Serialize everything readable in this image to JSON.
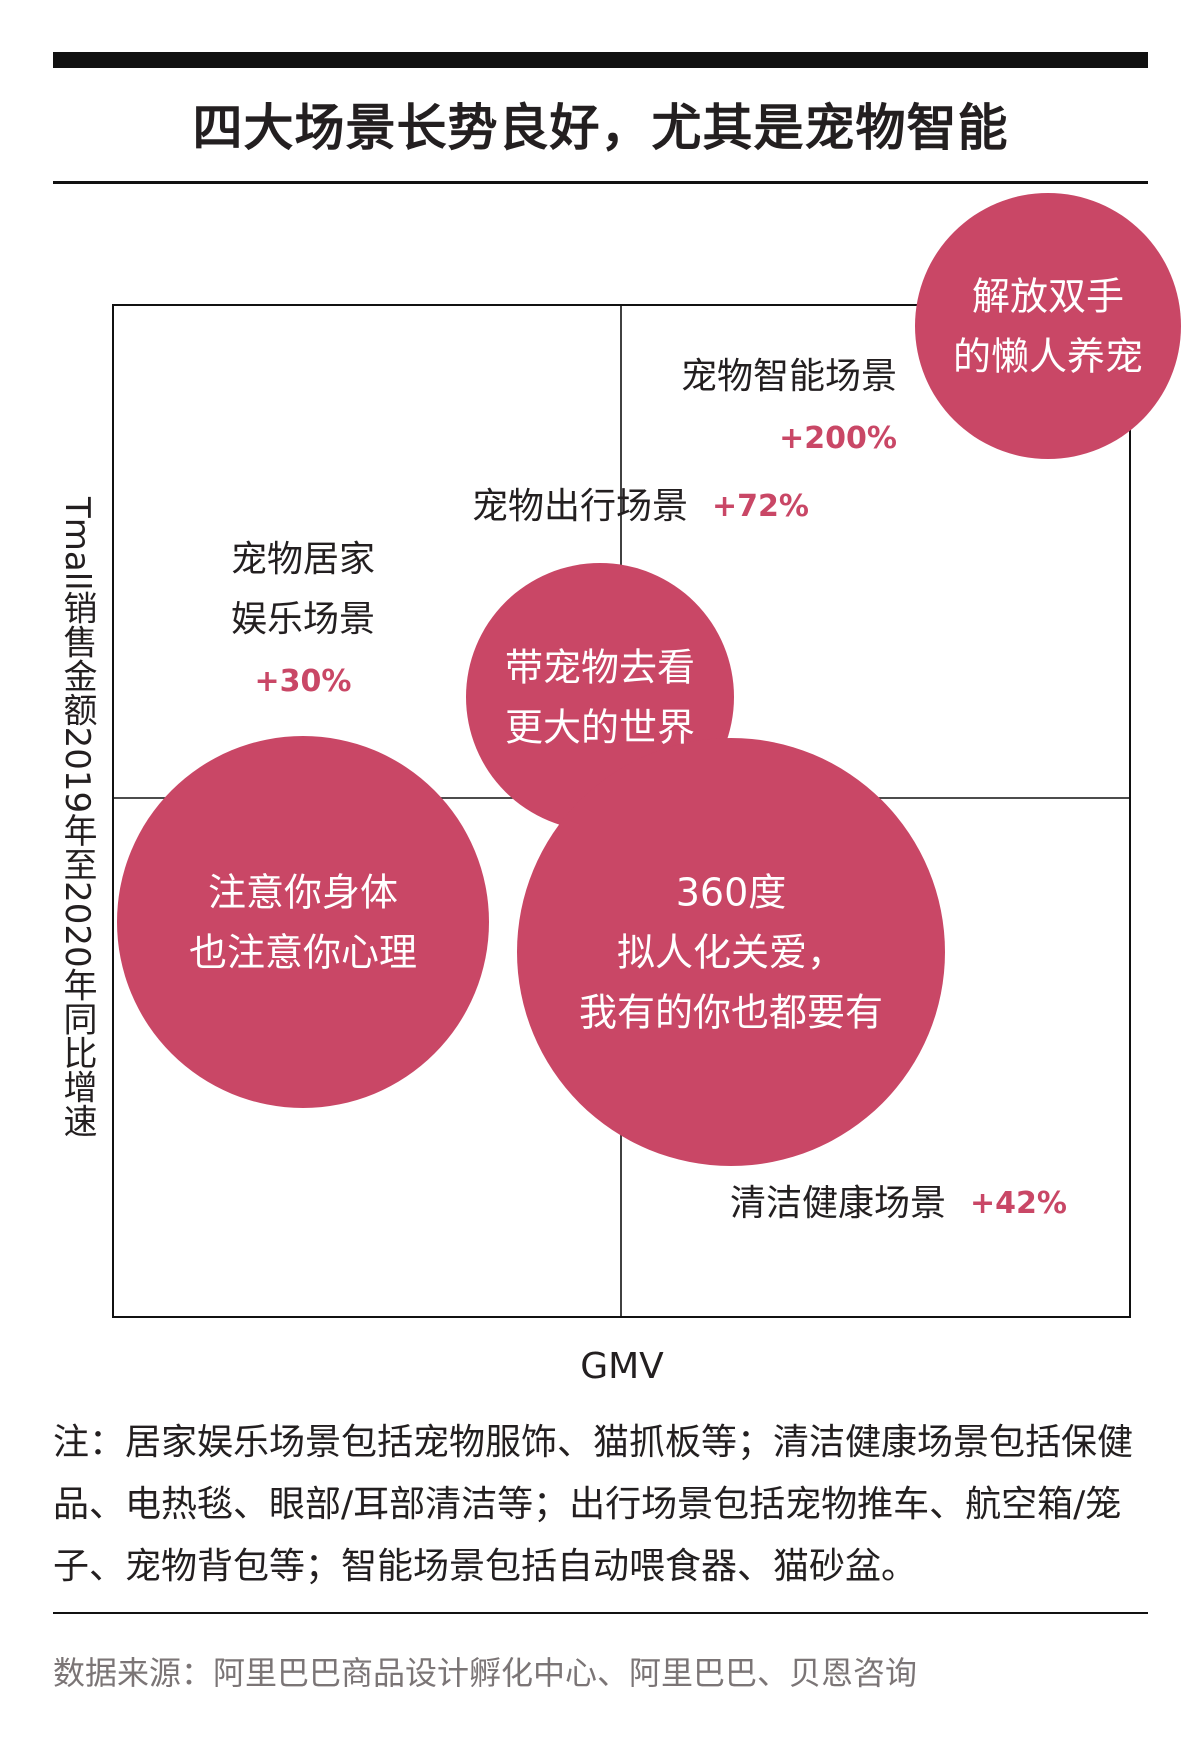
{
  "title": "四大场景长势良好，尤其是宠物智能",
  "colors": {
    "bubble": "#c94766",
    "growth_text": "#c94766",
    "text": "#231f20",
    "source_text": "#7b7576"
  },
  "chart_data": {
    "type": "bubble-quadrant",
    "xlabel": "GMV",
    "ylabel": "Tmall销售金额2019年至2020年同比增速",
    "grid": "quadrant",
    "scenes": [
      {
        "name": "宠物智能场景",
        "growth": "+200%",
        "growth_pct": 200
      },
      {
        "name": "宠物出行场景",
        "growth": "+72%",
        "growth_pct": 72
      },
      {
        "name": "宠物居家娱乐场景",
        "name_lines": [
          "宠物居家",
          "娱乐场景"
        ],
        "growth": "+30%",
        "growth_pct": 30
      },
      {
        "name": "清洁健康场景",
        "growth": "+42%",
        "growth_pct": 42
      }
    ],
    "bubbles": [
      {
        "lines": [
          "解放双手",
          "的懒人养宠"
        ]
      },
      {
        "lines": [
          "带宠物去看",
          "更大的世界"
        ]
      },
      {
        "lines": [
          "注意你身体",
          "也注意你心理"
        ]
      },
      {
        "lines": [
          "360度",
          "拟人化关爱，",
          "我有的你也都要有"
        ]
      }
    ]
  },
  "note": "注：居家娱乐场景包括宠物服饰、猫抓板等；清洁健康场景包括保健品、电热毯、眼部/耳部清洁等；出行场景包括宠物推车、航空箱/笼子、宠物背包等；智能场景包括自动喂食器、猫砂盆。",
  "source": "数据来源：阿里巴巴商品设计孵化中心、阿里巴巴、贝恩咨询"
}
